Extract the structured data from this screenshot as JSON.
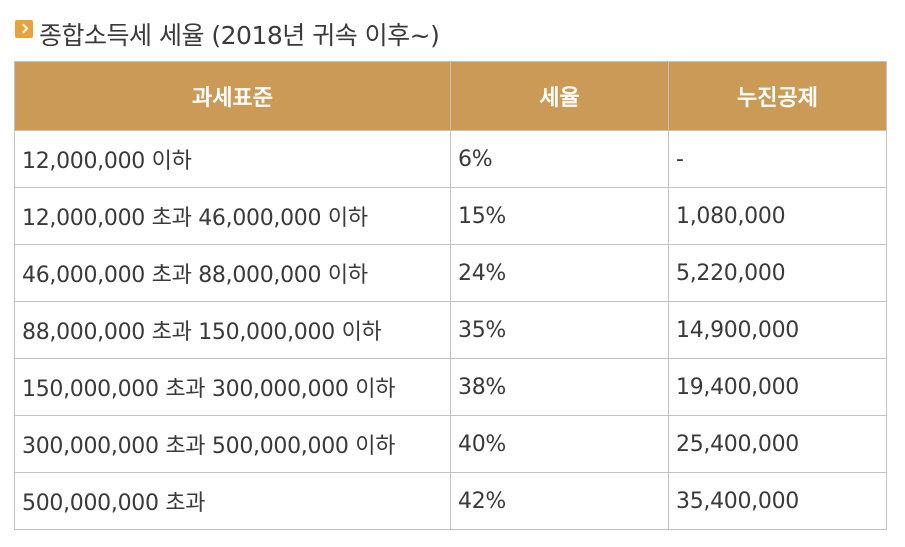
{
  "page": {
    "title": "종합소득세 세율 (2018년 귀속 이후~)"
  },
  "colors": {
    "header_bg": "#cb9a57",
    "header_text": "#ffffff",
    "bullet": "#e8a23a",
    "border": "#c2c2c2"
  },
  "icons": {
    "title_bullet": "chevron-right-icon"
  },
  "table": {
    "headers": [
      "과세표준",
      "세율",
      "누진공제"
    ],
    "rows": [
      [
        "12,000,000 이하",
        "6%",
        "-"
      ],
      [
        "12,000,000 초과 46,000,000 이하",
        "15%",
        "1,080,000"
      ],
      [
        "46,000,000 초과 88,000,000 이하",
        "24%",
        "5,220,000"
      ],
      [
        "88,000,000 초과 150,000,000 이하",
        "35%",
        "14,900,000"
      ],
      [
        "150,000,000 초과 300,000,000 이하",
        "38%",
        "19,400,000"
      ],
      [
        "300,000,000 초과 500,000,000 이하",
        "40%",
        "25,400,000"
      ],
      [
        "500,000,000 초과",
        "42%",
        "35,400,000"
      ]
    ]
  }
}
